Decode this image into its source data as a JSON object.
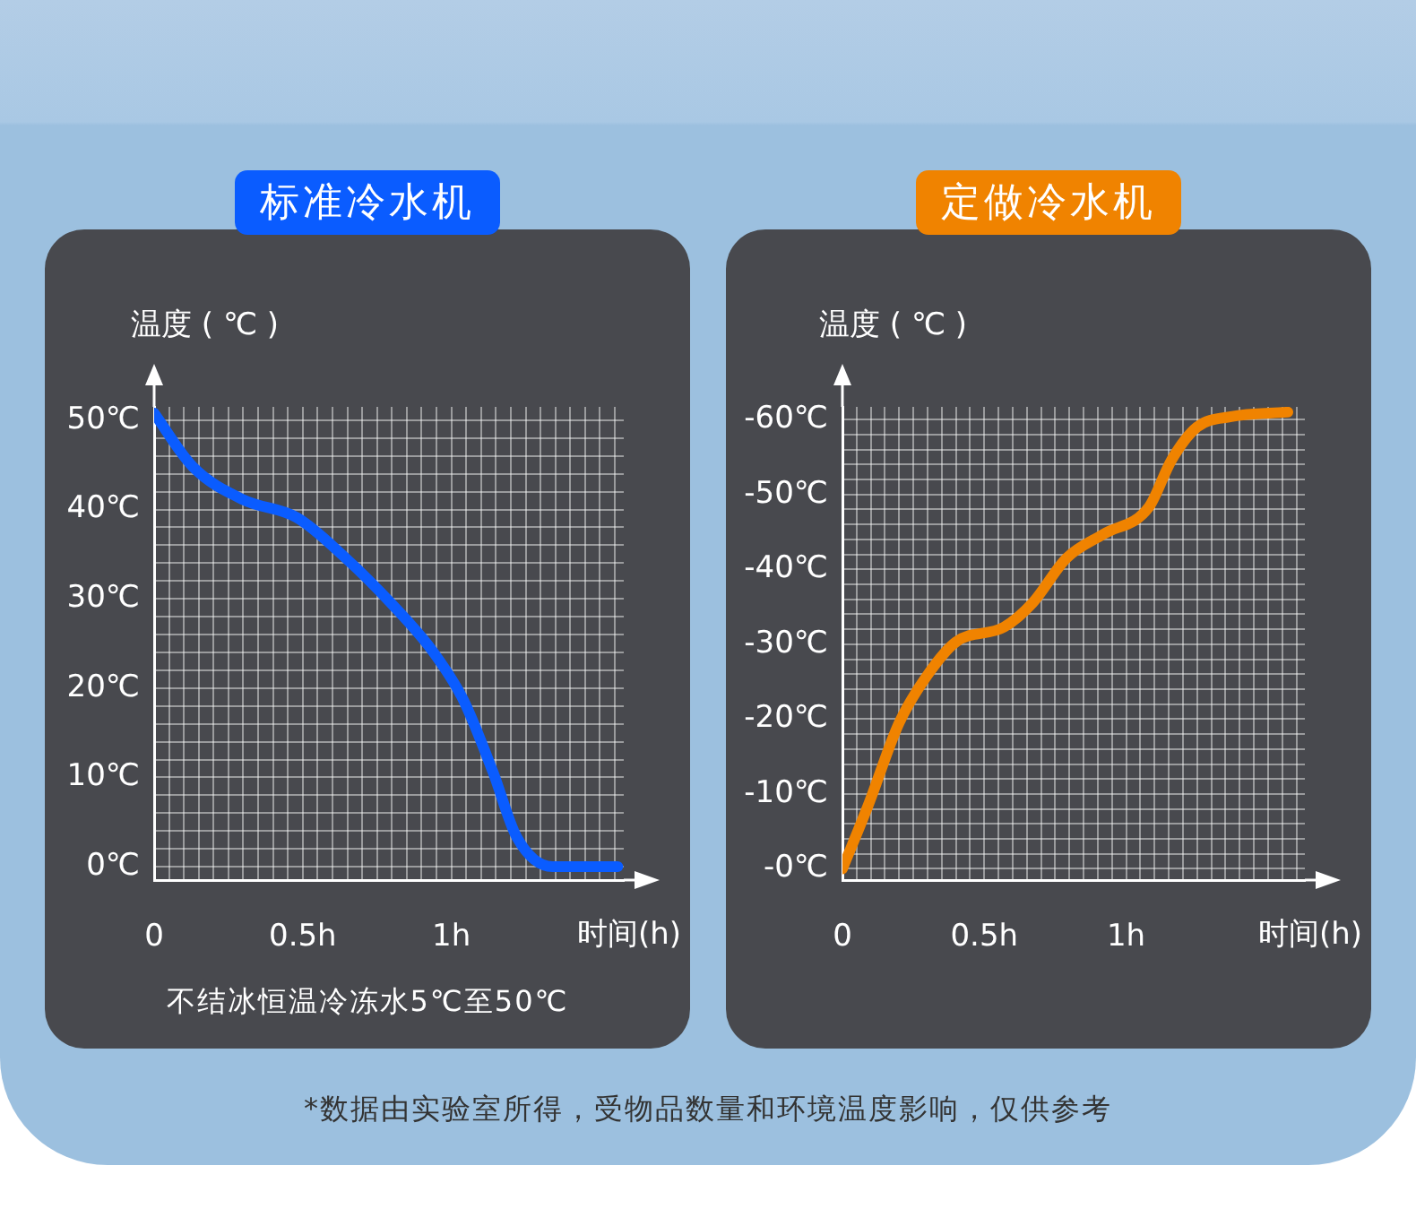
{
  "chart_data": [
    {
      "type": "line",
      "title": "标准冷水机",
      "ylabel": "温度 ( ℃ )",
      "xlabel": "时间(h)",
      "grid": true,
      "legend": false,
      "marker": "none",
      "line_style": "solid",
      "series": [
        {
          "color": "#0a5cff",
          "x": [
            0,
            0.13,
            0.3,
            0.48,
            0.64,
            0.8,
            0.94,
            1.04,
            1.14,
            1.22,
            1.34,
            1.56
          ],
          "values": [
            50.8,
            44.8,
            41.1,
            39.1,
            34.7,
            29.4,
            24.0,
            18.7,
            10.6,
            3.3,
            0,
            0
          ]
        }
      ],
      "xlim": [
        0,
        1.58
      ],
      "ylim": [
        -1.5,
        51.5
      ],
      "xticks": [
        {
          "value": 0,
          "label": "0"
        },
        {
          "value": 0.05,
          "label": null
        },
        {
          "value": 0.1,
          "label": null
        },
        {
          "value": 0.15,
          "label": null
        },
        {
          "value": 0.2,
          "label": null
        },
        {
          "value": 0.25,
          "label": null
        },
        {
          "value": 0.3,
          "label": null
        },
        {
          "value": 0.35,
          "label": null
        },
        {
          "value": 0.4,
          "label": null
        },
        {
          "value": 0.45,
          "label": null
        },
        {
          "value": 0.5,
          "label": "0.5h"
        },
        {
          "value": 0.55,
          "label": null
        },
        {
          "value": 0.6,
          "label": null
        },
        {
          "value": 0.65,
          "label": null
        },
        {
          "value": 0.7,
          "label": null
        },
        {
          "value": 0.75,
          "label": null
        },
        {
          "value": 0.8,
          "label": null
        },
        {
          "value": 0.85,
          "label": null
        },
        {
          "value": 0.9,
          "label": null
        },
        {
          "value": 0.95,
          "label": null
        },
        {
          "value": 1,
          "label": "1h"
        },
        {
          "value": 1.05,
          "label": null
        },
        {
          "value": 1.1,
          "label": null
        },
        {
          "value": 1.15,
          "label": null
        },
        {
          "value": 1.2,
          "label": null
        },
        {
          "value": 1.25,
          "label": null
        },
        {
          "value": 1.3,
          "label": null
        },
        {
          "value": 1.35,
          "label": null
        },
        {
          "value": 1.4,
          "label": null
        },
        {
          "value": 1.45,
          "label": null
        },
        {
          "value": 1.5,
          "label": null
        },
        {
          "value": 1.55,
          "label": null
        }
      ],
      "yticks": [
        {
          "value": 0,
          "label": "0℃"
        },
        {
          "value": 2,
          "label": null
        },
        {
          "value": 4,
          "label": null
        },
        {
          "value": 6,
          "label": null
        },
        {
          "value": 8,
          "label": null
        },
        {
          "value": 10,
          "label": "10℃"
        },
        {
          "value": 12,
          "label": null
        },
        {
          "value": 14,
          "label": null
        },
        {
          "value": 16,
          "label": null
        },
        {
          "value": 18,
          "label": null
        },
        {
          "value": 20,
          "label": "20℃"
        },
        {
          "value": 22,
          "label": null
        },
        {
          "value": 24,
          "label": null
        },
        {
          "value": 26,
          "label": null
        },
        {
          "value": 28,
          "label": null
        },
        {
          "value": 30,
          "label": "30℃"
        },
        {
          "value": 32,
          "label": null
        },
        {
          "value": 34,
          "label": null
        },
        {
          "value": 36,
          "label": null
        },
        {
          "value": 38,
          "label": null
        },
        {
          "value": 40,
          "label": "40℃"
        },
        {
          "value": 42,
          "label": null
        },
        {
          "value": 44,
          "label": null
        },
        {
          "value": 46,
          "label": null
        },
        {
          "value": 48,
          "label": null
        },
        {
          "value": 50,
          "label": "50℃"
        }
      ],
      "annotations": [
        "不结冰恒温冷冻水5℃至50℃"
      ]
    },
    {
      "type": "line",
      "title": "定做冷水机",
      "ylabel": "温度 ( ℃ )",
      "xlabel": "时间(h)",
      "grid": true,
      "legend": false,
      "marker": "none",
      "line_style": "solid",
      "series": [
        {
          "color": "#f08300",
          "x": [
            0,
            0.09,
            0.2,
            0.3,
            0.4,
            0.57,
            0.67,
            0.79,
            0.92,
            1.08,
            1.16,
            1.25,
            1.37,
            1.57
          ],
          "values": [
            0,
            -8.4,
            -19.5,
            -25.9,
            -30.3,
            -32.3,
            -35.5,
            -41.5,
            -44.7,
            -48.3,
            -54.6,
            -59.0,
            -60.4,
            -61.0
          ]
        }
      ],
      "xlim": [
        0,
        1.63
      ],
      "ylim": [
        1.5,
        -61.7
      ],
      "xticks": [
        {
          "value": 0,
          "label": "0"
        },
        {
          "value": 0.05,
          "label": null
        },
        {
          "value": 0.1,
          "label": null
        },
        {
          "value": 0.15,
          "label": null
        },
        {
          "value": 0.2,
          "label": null
        },
        {
          "value": 0.25,
          "label": null
        },
        {
          "value": 0.3,
          "label": null
        },
        {
          "value": 0.35,
          "label": null
        },
        {
          "value": 0.4,
          "label": null
        },
        {
          "value": 0.45,
          "label": null
        },
        {
          "value": 0.5,
          "label": "0.5h"
        },
        {
          "value": 0.55,
          "label": null
        },
        {
          "value": 0.6,
          "label": null
        },
        {
          "value": 0.65,
          "label": null
        },
        {
          "value": 0.7,
          "label": null
        },
        {
          "value": 0.75,
          "label": null
        },
        {
          "value": 0.8,
          "label": null
        },
        {
          "value": 0.85,
          "label": null
        },
        {
          "value": 0.9,
          "label": null
        },
        {
          "value": 0.95,
          "label": null
        },
        {
          "value": 1,
          "label": "1h"
        },
        {
          "value": 1.05,
          "label": null
        },
        {
          "value": 1.1,
          "label": null
        },
        {
          "value": 1.15,
          "label": null
        },
        {
          "value": 1.2,
          "label": null
        },
        {
          "value": 1.25,
          "label": null
        },
        {
          "value": 1.3,
          "label": null
        },
        {
          "value": 1.35,
          "label": null
        },
        {
          "value": 1.4,
          "label": null
        },
        {
          "value": 1.45,
          "label": null
        },
        {
          "value": 1.5,
          "label": null
        },
        {
          "value": 1.55,
          "label": null
        },
        {
          "value": 1.6,
          "label": null
        }
      ],
      "yticks": [
        {
          "value": 0,
          "label": "-0℃"
        },
        {
          "value": -2,
          "label": null
        },
        {
          "value": -4,
          "label": null
        },
        {
          "value": -6,
          "label": null
        },
        {
          "value": -8,
          "label": null
        },
        {
          "value": -10,
          "label": "-10℃"
        },
        {
          "value": -12,
          "label": null
        },
        {
          "value": -14,
          "label": null
        },
        {
          "value": -16,
          "label": null
        },
        {
          "value": -18,
          "label": null
        },
        {
          "value": -20,
          "label": "-20℃"
        },
        {
          "value": -22,
          "label": null
        },
        {
          "value": -24,
          "label": null
        },
        {
          "value": -26,
          "label": null
        },
        {
          "value": -28,
          "label": null
        },
        {
          "value": -30,
          "label": "-30℃"
        },
        {
          "value": -32,
          "label": null
        },
        {
          "value": -34,
          "label": null
        },
        {
          "value": -36,
          "label": null
        },
        {
          "value": -38,
          "label": null
        },
        {
          "value": -40,
          "label": "-40℃"
        },
        {
          "value": -42,
          "label": null
        },
        {
          "value": -44,
          "label": null
        },
        {
          "value": -46,
          "label": null
        },
        {
          "value": -48,
          "label": null
        },
        {
          "value": -50,
          "label": "-50℃"
        },
        {
          "value": -52,
          "label": null
        },
        {
          "value": -54,
          "label": null
        },
        {
          "value": -56,
          "label": null
        },
        {
          "value": -58,
          "label": null
        },
        {
          "value": -60,
          "label": "-60℃"
        }
      ],
      "annotations": [
        "*数据由实验室所得，受物品数量和环境温度影响，仅供参考"
      ]
    }
  ]
}
